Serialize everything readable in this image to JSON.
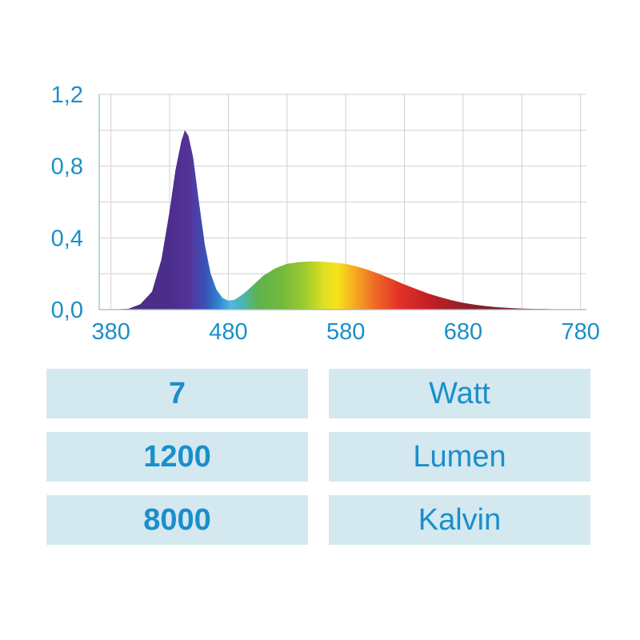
{
  "chart_data": {
    "type": "area",
    "title": "",
    "xlabel": "",
    "ylabel": "",
    "xlim": [
      370,
      785
    ],
    "ylim": [
      0,
      1.2
    ],
    "x_ticks": [
      380,
      480,
      580,
      680,
      780
    ],
    "x_tick_labels": [
      "380",
      "480",
      "580",
      "680",
      "780"
    ],
    "y_ticks": [
      0,
      0.4,
      0.8,
      1.2
    ],
    "y_tick_labels": [
      "0,0",
      "0,4",
      "0,8",
      "1,2"
    ],
    "grid": true,
    "series": [
      {
        "x": [
          380,
          395,
          405,
          415,
          423,
          430,
          435,
          440,
          443,
          446,
          450,
          455,
          460,
          465,
          470,
          475,
          480,
          485,
          490,
          495,
          500,
          505,
          510,
          520,
          530,
          540,
          550,
          560,
          570,
          580,
          590,
          600,
          610,
          620,
          630,
          640,
          650,
          660,
          670,
          680,
          690,
          700,
          710,
          720,
          730,
          740,
          750,
          760,
          770,
          780
        ],
        "values": [
          0.0,
          0.005,
          0.03,
          0.1,
          0.28,
          0.55,
          0.78,
          0.94,
          1.0,
          0.97,
          0.85,
          0.6,
          0.36,
          0.2,
          0.11,
          0.065,
          0.05,
          0.055,
          0.075,
          0.1,
          0.13,
          0.16,
          0.19,
          0.23,
          0.255,
          0.265,
          0.268,
          0.267,
          0.262,
          0.255,
          0.24,
          0.22,
          0.195,
          0.168,
          0.14,
          0.115,
          0.09,
          0.07,
          0.052,
          0.038,
          0.027,
          0.019,
          0.013,
          0.009,
          0.006,
          0.004,
          0.003,
          0.002,
          0.001,
          0.0
        ]
      }
    ]
  },
  "specs": [
    {
      "value": "7",
      "unit": "Watt"
    },
    {
      "value": "1200",
      "unit": "Lumen"
    },
    {
      "value": "8000",
      "unit": "Kalvin"
    }
  ],
  "colors": {
    "text": "#1a8fca",
    "cell_bg": "#d4e8f0",
    "grid": "#d0d0d0",
    "axis": "#9ab8cc"
  }
}
